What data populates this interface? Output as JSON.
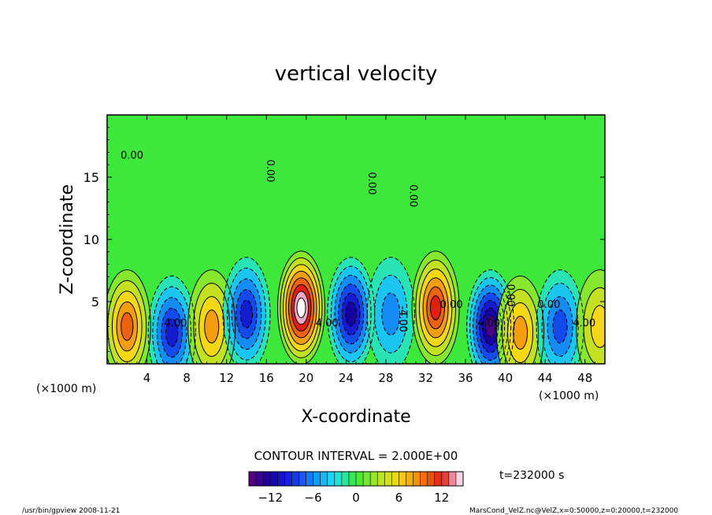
{
  "chart_data": {
    "type": "heatmap",
    "title": "vertical velocity",
    "xlabel": "X-coordinate",
    "ylabel": "Z-coordinate",
    "x_unit_left": "(×1000 m)",
    "x_unit_right": "(×1000 m)",
    "xlim": [
      0,
      50
    ],
    "ylim": [
      0,
      20
    ],
    "x_ticks": [
      4,
      8,
      12,
      16,
      20,
      24,
      28,
      32,
      36,
      40,
      44,
      48
    ],
    "y_ticks": [
      5,
      10,
      15
    ],
    "contour_interval_text": "CONTOUR INTERVAL = 2.000E+00",
    "time_text": "t=232000 s",
    "colorbar": {
      "min": -15,
      "max": 15,
      "ticks": [
        -12,
        -6,
        0,
        6,
        12
      ]
    },
    "contour_labels": [
      "0.00",
      "0.00",
      "0.00",
      "0.00",
      "4.00",
      "4.00",
      "-4.00",
      "0.00",
      "4.00",
      "0.00",
      "0.00",
      "4.00"
    ],
    "cells": [
      {
        "x": 2,
        "z": 3,
        "value": 9
      },
      {
        "x": 6.5,
        "z": 2.5,
        "value": -9
      },
      {
        "x": 10.5,
        "z": 3,
        "value": 8
      },
      {
        "x": 14,
        "z": 4,
        "value": -10
      },
      {
        "x": 19.5,
        "z": 4.5,
        "value": 15
      },
      {
        "x": 24.5,
        "z": 4,
        "value": -11
      },
      {
        "x": 28.5,
        "z": 4,
        "value": -5
      },
      {
        "x": 33,
        "z": 4.5,
        "value": 12
      },
      {
        "x": 38.5,
        "z": 3,
        "value": -14
      },
      {
        "x": 41.5,
        "z": 2.5,
        "value": 7
      },
      {
        "x": 45.5,
        "z": 3,
        "value": -8
      },
      {
        "x": 49.5,
        "z": 3,
        "value": 6
      }
    ]
  },
  "footer": {
    "left": "/usr/bin/gpview   2008-11-21",
    "right": "MarsCond_VelZ.nc@VelZ,x=0:50000,z=0:20000,t=232000"
  },
  "colors": {
    "background_field": "#3de83a",
    "frame": "#000000"
  }
}
